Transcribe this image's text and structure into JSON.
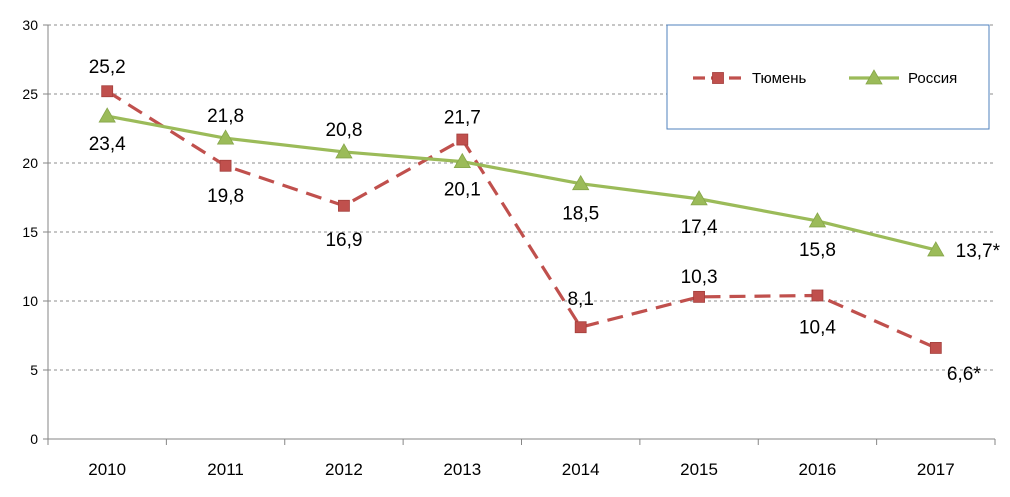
{
  "chart_data": {
    "type": "line",
    "title": "",
    "xlabel": "",
    "ylabel": "",
    "ylim": [
      0,
      30
    ],
    "yticks": [
      0,
      5,
      10,
      15,
      20,
      25,
      30
    ],
    "grid": true,
    "legend_position": "top-right",
    "categories": [
      "2010",
      "2011",
      "2012",
      "2013",
      "2014",
      "2015",
      "2016",
      "2017"
    ],
    "series": [
      {
        "name": "Тюмень",
        "color": "#c0504d",
        "marker": "square",
        "line_style": "dashed",
        "values": [
          25.2,
          19.8,
          16.9,
          21.7,
          8.1,
          10.3,
          10.4,
          6.6
        ],
        "labels": [
          "25,2",
          "19,8",
          "16,9",
          "21,7",
          "8,1",
          "10,3",
          "10,4",
          "6,6*"
        ]
      },
      {
        "name": "Россия",
        "color": "#9bbb59",
        "marker": "triangle",
        "line_style": "solid",
        "values": [
          23.4,
          21.8,
          20.8,
          20.1,
          18.5,
          17.4,
          15.8,
          13.7
        ],
        "labels": [
          "23,4",
          "21,8",
          "20,8",
          "20,1",
          "18,5",
          "17,4",
          "15,8",
          "13,7*"
        ]
      }
    ]
  }
}
